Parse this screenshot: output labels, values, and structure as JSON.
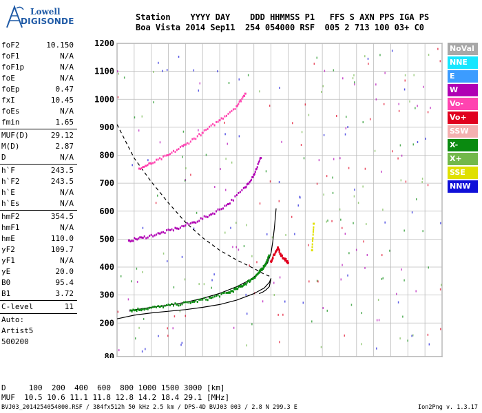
{
  "logo": {
    "line1": "Lowell",
    "line2": "DIGISONDE"
  },
  "header": {
    "line1": "Station    YYYY DAY    DDD HHMMSS P1   FFS S AXN PPS IGA PS",
    "line2": "Boa Vista 2014 Sep11  254 054000 RSF  005 2 713 100 03+ C0"
  },
  "params": [
    {
      "groups": [
        {
          "k": "foF2",
          "v": "10.150"
        },
        {
          "k": "foF1",
          "v": "N/A"
        },
        {
          "k": "foF1p",
          "v": "N/A"
        },
        {
          "k": "foE",
          "v": "N/A"
        },
        {
          "k": "foEp",
          "v": "0.47"
        },
        {
          "k": "fxI",
          "v": "10.45"
        },
        {
          "k": "foEs",
          "v": "N/A"
        },
        {
          "k": "fmin",
          "v": "1.65"
        }
      ]
    },
    {
      "groups": [
        {
          "k": "MUF(D)",
          "v": "29.12"
        },
        {
          "k": "M(D)",
          "v": "2.87"
        },
        {
          "k": "D",
          "v": "N/A"
        }
      ]
    },
    {
      "groups": [
        {
          "k": "h`F",
          "v": "243.5"
        },
        {
          "k": "h`F2",
          "v": "243.5"
        },
        {
          "k": "h`E",
          "v": "N/A"
        },
        {
          "k": "h`Es",
          "v": "N/A"
        }
      ]
    },
    {
      "groups": [
        {
          "k": "hmF2",
          "v": "354.5"
        },
        {
          "k": "hmF1",
          "v": "N/A"
        },
        {
          "k": "hmE",
          "v": "110.0"
        },
        {
          "k": "yF2",
          "v": "109.7"
        },
        {
          "k": "yF1",
          "v": "N/A"
        },
        {
          "k": "yE",
          "v": "20.0"
        },
        {
          "k": "B0",
          "v": "95.4"
        },
        {
          "k": "B1",
          "v": "3.72"
        }
      ]
    },
    {
      "groups": [
        {
          "k": "C-level",
          "v": "11"
        }
      ]
    }
  ],
  "auto": [
    "Auto:",
    "Artist5",
    "500200"
  ],
  "legend": [
    {
      "label": "NoVal",
      "color": "#a8a8a8"
    },
    {
      "label": "NNE",
      "color": "#17e6ff"
    },
    {
      "label": "E",
      "color": "#3c9cff"
    },
    {
      "label": "W",
      "color": "#b000b4"
    },
    {
      "label": "Vo-",
      "color": "#ff44b0"
    },
    {
      "label": "Vo+",
      "color": "#e0001e"
    },
    {
      "label": "SSW",
      "color": "#f4b0b0"
    },
    {
      "label": "X-",
      "color": "#0a8a10"
    },
    {
      "label": "X+",
      "color": "#72b84a"
    },
    {
      "label": "SSE",
      "color": "#e0e000"
    },
    {
      "label": "NNW",
      "color": "#1010d8"
    }
  ],
  "bottom": {
    "d_row": "D     100  200  400  600  800 1000 1500 3000 [km]",
    "muf_row": "MUF  10.5 10.6 11.1 11.8 12.8 14.2 18.4 29.1 [MHz]"
  },
  "footer": {
    "left": "BVJ03_2014254054000.RSF / 384fx512h 50 kHz 2.5 km / DPS-4D BVJ03 003 / 2.8 N 299.3 E",
    "right": "Ion2Png v. 1.3.17"
  },
  "chart_data": {
    "type": "scatter",
    "title": "",
    "xlabel": "",
    "ylabel": "",
    "xlim": [
      1,
      20
    ],
    "ylim": [
      80,
      1200
    ],
    "x_ticks": [
      1,
      2,
      3,
      4,
      5,
      6,
      7,
      8,
      9,
      10,
      11,
      12,
      13,
      14,
      15,
      16,
      17,
      18,
      19,
      20
    ],
    "y_ticks": [
      80,
      200,
      300,
      400,
      500,
      600,
      700,
      800,
      900,
      1000,
      1100,
      1200
    ],
    "grid": true,
    "legend_position": "right",
    "series": [
      {
        "name": "X-",
        "color": "#0a8a10",
        "x": [
          1.8,
          2.5,
          3.5,
          4.5,
          5.5,
          6.5,
          7.5,
          8.0,
          8.5,
          9.0,
          9.3,
          9.5,
          9.7,
          9.9
        ],
        "y": [
          245,
          250,
          258,
          266,
          276,
          290,
          308,
          322,
          340,
          362,
          380,
          395,
          412,
          440
        ]
      },
      {
        "name": "W",
        "color": "#b000b4",
        "x": [
          1.7,
          2.5,
          3.5,
          4.5,
          5.5,
          6.5,
          7.5,
          8.5,
          9.0,
          9.4
        ],
        "y": [
          495,
          505,
          520,
          538,
          560,
          588,
          625,
          685,
          730,
          790
        ]
      },
      {
        "name": "Vo-",
        "color": "#ff44b0",
        "x": [
          2.3,
          3.0,
          4.0,
          5.0,
          6.0,
          7.0,
          8.0,
          8.5
        ],
        "y": [
          752,
          770,
          800,
          838,
          880,
          925,
          975,
          1020
        ]
      },
      {
        "name": "Vo+",
        "color": "#e0001e",
        "x": [
          10.0,
          10.2,
          10.4,
          10.6,
          10.8,
          11.0
        ],
        "y": [
          420,
          445,
          470,
          440,
          430,
          415
        ]
      },
      {
        "name": "SSE",
        "color": "#e0e000",
        "x": [
          12.4,
          12.5
        ],
        "y": [
          460,
          555
        ]
      }
    ],
    "curves": [
      {
        "name": "profile",
        "style": "solid",
        "x": [
          1,
          2,
          3,
          4,
          5,
          6,
          7,
          8,
          9,
          9.6,
          9.9,
          10.0,
          9.9,
          9.7,
          9.5,
          9.3
        ],
        "y": [
          215,
          228,
          236,
          242,
          248,
          256,
          266,
          282,
          305,
          325,
          345,
          360,
          330,
          318,
          310,
          305
        ]
      },
      {
        "name": "trace-fit",
        "style": "solid",
        "x": [
          1.8,
          3,
          4,
          5,
          6,
          7,
          8,
          8.8,
          9.4,
          9.8,
          10.0,
          10.1,
          10.2,
          10.3
        ],
        "y": [
          245,
          256,
          264,
          274,
          288,
          306,
          330,
          355,
          385,
          415,
          450,
          490,
          540,
          610
        ]
      },
      {
        "name": "MUF",
        "style": "dashed",
        "x": [
          1,
          2,
          3,
          4,
          5,
          6,
          7,
          8,
          9,
          9.6,
          10.0
        ],
        "y": [
          910,
          790,
          705,
          630,
          560,
          505,
          460,
          425,
          395,
          375,
          365
        ]
      }
    ]
  }
}
